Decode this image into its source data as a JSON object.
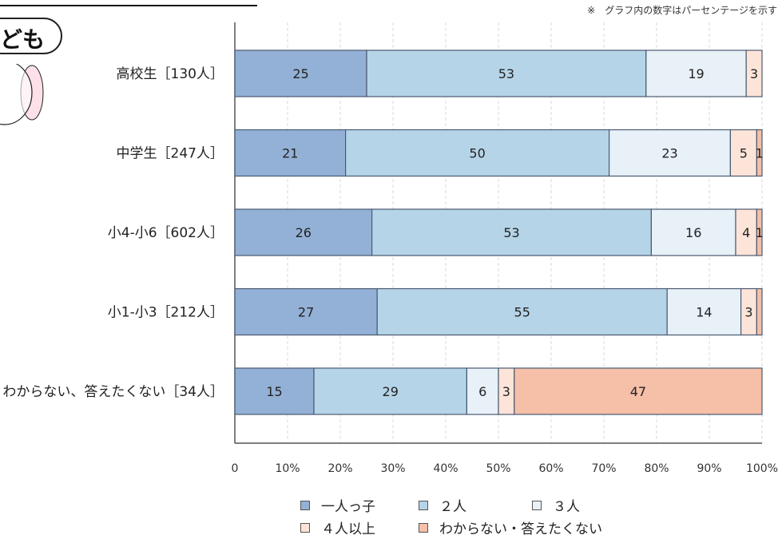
{
  "note": "※　グラフ内の数字はパーセンテージを示す",
  "badge_text": "ども",
  "chart_data": {
    "type": "bar",
    "orientation": "horizontal",
    "stacked": true,
    "categories": [
      "高校生［130人］",
      "中学生［247人］",
      "小4-小6［602人］",
      "小1-小3［212人］",
      "わからない、答えたくない［34人］"
    ],
    "series": [
      {
        "name": "一人っ子",
        "color": "#93b1d6",
        "values": [
          25,
          21,
          26,
          27,
          15
        ]
      },
      {
        "name": "２人",
        "color": "#b5d4e8",
        "values": [
          53,
          50,
          53,
          55,
          29
        ]
      },
      {
        "name": "３人",
        "color": "#e8f0f8",
        "values": [
          19,
          23,
          16,
          14,
          6
        ]
      },
      {
        "name": "４人以上",
        "color": "#fde4d8",
        "values": [
          3,
          5,
          4,
          3,
          3
        ]
      },
      {
        "name": "わからない・答えたくない",
        "color": "#f5bfa8",
        "values": [
          0,
          1,
          1,
          1,
          47
        ]
      }
    ],
    "data_labels": [
      [
        "25",
        "53",
        "19",
        "3",
        ""
      ],
      [
        "21",
        "50",
        "23",
        "5",
        "1"
      ],
      [
        "26",
        "53",
        "16",
        "4",
        "1"
      ],
      [
        "27",
        "55",
        "14",
        "3",
        ""
      ],
      [
        "15",
        "29",
        "6",
        "3",
        "47"
      ]
    ],
    "x_ticks": [
      "0",
      "10%",
      "20%",
      "30%",
      "40%",
      "50%",
      "60%",
      "70%",
      "80%",
      "90%",
      "100%"
    ],
    "xlim": [
      0,
      100
    ],
    "grid": true,
    "legend_position": "bottom"
  }
}
